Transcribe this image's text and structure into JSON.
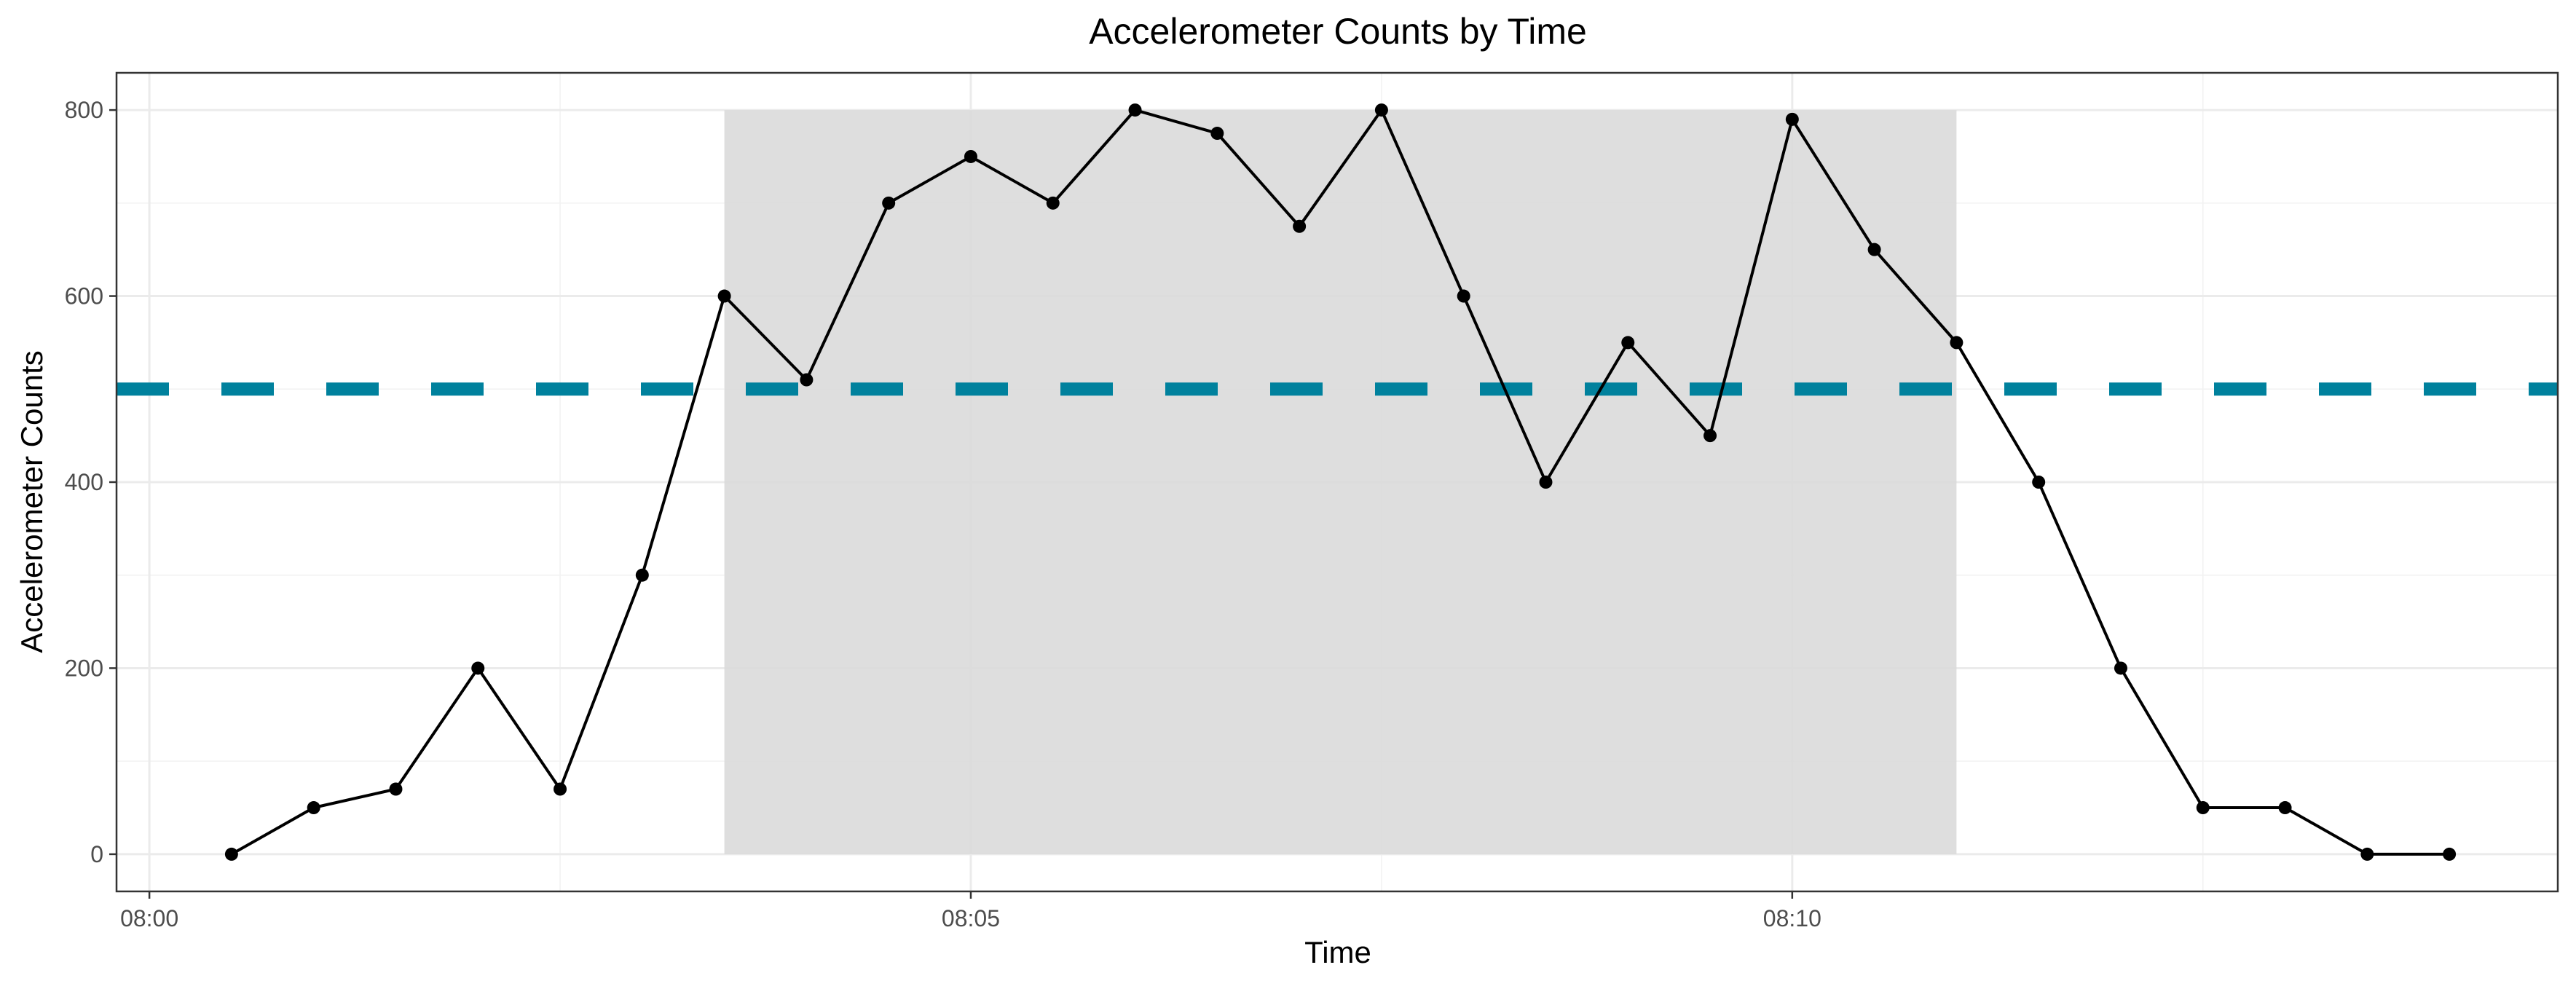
{
  "chart_data": {
    "type": "line",
    "title": "Accelerometer Counts by Time",
    "xlabel": "Time",
    "ylabel": "Accelerometer Counts",
    "x_ticks": [
      "08:00",
      "08:05",
      "08:10"
    ],
    "x_tick_minutes": [
      0,
      5,
      10
    ],
    "y_ticks": [
      0,
      200,
      400,
      600,
      800
    ],
    "xlim_minutes": [
      -0.2,
      14.66
    ],
    "ylim": [
      -40,
      840
    ],
    "grid": true,
    "series": [
      {
        "x": [
          "08:00:30",
          "08:01:00",
          "08:01:30",
          "08:02:00",
          "08:02:30",
          "08:03:00",
          "08:03:30",
          "08:04:00",
          "08:04:30",
          "08:05:00",
          "08:05:30",
          "08:06:00",
          "08:06:30",
          "08:07:00",
          "08:07:30",
          "08:08:00",
          "08:08:30",
          "08:09:00",
          "08:09:30",
          "08:10:00",
          "08:10:30",
          "08:11:00",
          "08:11:30",
          "08:12:00",
          "08:12:30",
          "08:13:00",
          "08:13:30",
          "08:14:00"
        ],
        "x_minutes": [
          0.5,
          1,
          1.5,
          2,
          2.5,
          3,
          3.5,
          4,
          4.5,
          5,
          5.5,
          6,
          6.5,
          7,
          7.5,
          8,
          8.5,
          9,
          9.5,
          10,
          10.5,
          11,
          11.5,
          12,
          12.5,
          13,
          13.5,
          14
        ],
        "values": [
          0,
          50,
          70,
          200,
          70,
          300,
          600,
          510,
          700,
          750,
          700,
          800,
          775,
          675,
          800,
          600,
          400,
          550,
          450,
          790,
          650,
          550,
          400,
          200,
          50,
          50,
          0,
          0
        ],
        "color": "#000000"
      }
    ],
    "annotations": {
      "threshold": {
        "y": 500,
        "style": "dashed",
        "color": "#00819d"
      },
      "shaded_region": {
        "x_start_minutes": 3.5,
        "x_end_minutes": 11,
        "y_min": 0,
        "y_max": 800,
        "color": "#d9d9d9"
      }
    }
  }
}
